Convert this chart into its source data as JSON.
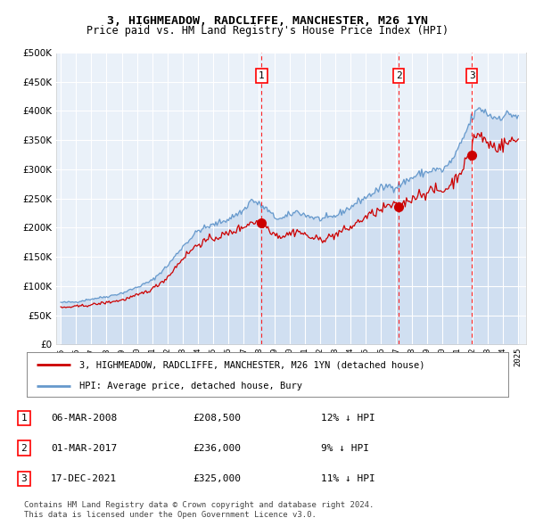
{
  "title1": "3, HIGHMEADOW, RADCLIFFE, MANCHESTER, M26 1YN",
  "title2": "Price paid vs. HM Land Registry's House Price Index (HPI)",
  "ytick_values": [
    0,
    50000,
    100000,
    150000,
    200000,
    250000,
    300000,
    350000,
    400000,
    450000,
    500000
  ],
  "xlim_start": 1994.7,
  "xlim_end": 2025.5,
  "ylim": [
    0,
    500000
  ],
  "background_color": "#ffffff",
  "plot_bg_color": "#eaf1f9",
  "hpi_color": "#6699cc",
  "hpi_fill_color": "#c5d8ef",
  "price_color": "#cc0000",
  "grid_color": "#ffffff",
  "transactions": [
    {
      "label": "1",
      "date": "06-MAR-2008",
      "price": 208500,
      "x": 2008.17,
      "pct": "12%",
      "dir": "↓"
    },
    {
      "label": "2",
      "date": "01-MAR-2017",
      "price": 236000,
      "x": 2017.17,
      "pct": "9%",
      "dir": "↓"
    },
    {
      "label": "3",
      "date": "17-DEC-2021",
      "price": 325000,
      "x": 2021.96,
      "pct": "11%",
      "dir": "↓"
    }
  ],
  "legend_line1": "3, HIGHMEADOW, RADCLIFFE, MANCHESTER, M26 1YN (detached house)",
  "legend_line2": "HPI: Average price, detached house, Bury",
  "footnote1": "Contains HM Land Registry data © Crown copyright and database right 2024.",
  "footnote2": "This data is licensed under the Open Government Licence v3.0."
}
